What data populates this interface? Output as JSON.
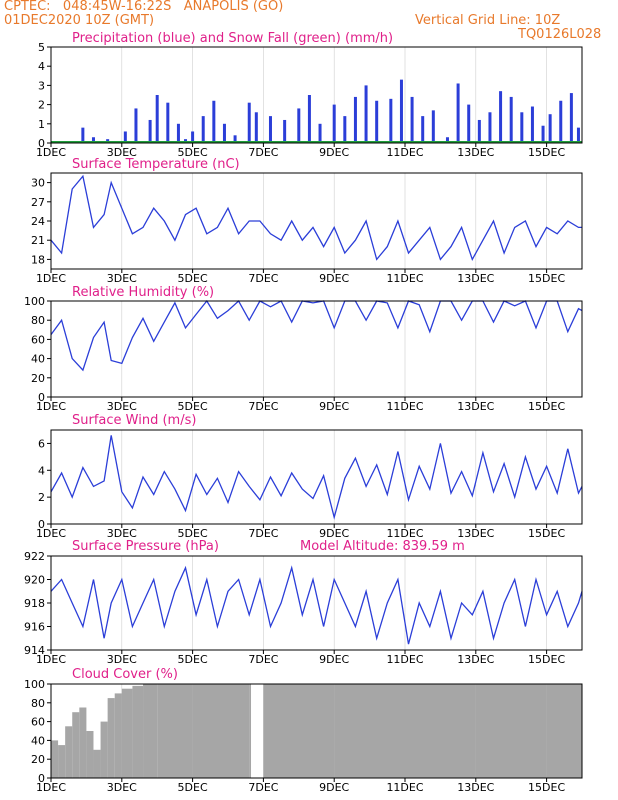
{
  "header": {
    "line1": "CPTEC:   048:45W-16:22S   ANAPOLIS (GO)",
    "line2_left": "01DEC2020 10Z (GMT)",
    "line2_right": "Vertical Grid Line: 10Z",
    "code": "TQ0126L028"
  },
  "colors": {
    "header": "#e8792b",
    "title": "#e0208a",
    "line": "#2b3ed8",
    "snow": "#1f9e3a",
    "cloud": "#a6a6a6"
  },
  "x_axis": {
    "days": [
      "1DEC",
      "3DEC",
      "5DEC",
      "7DEC",
      "9DEC",
      "11DEC",
      "13DEC",
      "15DEC"
    ]
  },
  "panels": {
    "precip": {
      "title": "Precipitation (blue) and Snow Fall (green) (mm/h)"
    },
    "temp": {
      "title": "Surface Temperature (nC)"
    },
    "rh": {
      "title": "Relative Humidity (%)"
    },
    "wind": {
      "title": "Surface Wind (m/s)"
    },
    "pres": {
      "title": "Surface Pressure (hPa)",
      "extra": "Model Altitude: 839.59 m"
    },
    "cloud": {
      "title": "Cloud Cover (%)"
    }
  },
  "chart_data": [
    {
      "type": "bar",
      "title": "Precipitation (blue) and Snow Fall (green) (mm/h)",
      "ylim": [
        0,
        5
      ],
      "yticks": [
        "0",
        "1",
        "2",
        "3",
        "4",
        "5"
      ],
      "series": [
        {
          "name": "Precipitation",
          "x_days": [
            1.3,
            1.9,
            2.2,
            2.6,
            3.1,
            3.4,
            3.8,
            4.0,
            4.3,
            4.6,
            4.8,
            5.0,
            5.3,
            5.6,
            5.9,
            6.2,
            6.6,
            6.8,
            7.2,
            7.6,
            8.0,
            8.3,
            8.6,
            9.0,
            9.3,
            9.6,
            9.9,
            10.2,
            10.6,
            10.9,
            11.2,
            11.5,
            11.8,
            12.2,
            12.5,
            12.8,
            13.1,
            13.4,
            13.7,
            14.0,
            14.3,
            14.6,
            14.9,
            15.1,
            15.4,
            15.7,
            15.9
          ],
          "values": [
            0.1,
            0.8,
            0.3,
            0.2,
            0.6,
            1.8,
            1.2,
            2.5,
            2.1,
            1.0,
            0.2,
            0.6,
            1.4,
            2.2,
            1.0,
            0.4,
            2.1,
            1.6,
            1.4,
            1.2,
            1.8,
            2.5,
            1.0,
            2.0,
            1.4,
            2.4,
            3.0,
            2.2,
            2.3,
            3.3,
            2.4,
            1.4,
            1.7,
            0.3,
            3.1,
            2.0,
            1.2,
            1.6,
            2.7,
            2.4,
            1.6,
            1.9,
            0.9,
            1.5,
            2.2,
            2.6,
            0.8
          ]
        },
        {
          "name": "Snow Fall",
          "x_days": [
            1.0,
            16.0
          ],
          "values": [
            0,
            0
          ]
        }
      ]
    },
    {
      "type": "line",
      "title": "Surface Temperature (nC)",
      "ylim": [
        16.5,
        31.5
      ],
      "yticks": [
        "18",
        "21",
        "24",
        "27",
        "30"
      ],
      "x_days": [
        1.0,
        1.3,
        1.6,
        1.9,
        2.2,
        2.5,
        2.7,
        3.0,
        3.3,
        3.6,
        3.9,
        4.2,
        4.5,
        4.8,
        5.1,
        5.4,
        5.7,
        6.0,
        6.3,
        6.6,
        6.9,
        7.2,
        7.5,
        7.8,
        8.1,
        8.4,
        8.7,
        9.0,
        9.3,
        9.6,
        9.9,
        10.2,
        10.5,
        10.8,
        11.1,
        11.4,
        11.7,
        12.0,
        12.3,
        12.6,
        12.9,
        13.2,
        13.5,
        13.8,
        14.1,
        14.4,
        14.7,
        15.0,
        15.3,
        15.6,
        15.9,
        16.0
      ],
      "values": [
        21,
        19,
        29,
        31,
        23,
        25,
        30,
        26,
        22,
        23,
        26,
        24,
        21,
        25,
        26,
        22,
        23,
        26,
        22,
        24,
        24,
        22,
        21,
        24,
        21,
        23,
        20,
        23,
        19,
        21,
        24,
        18,
        20,
        24,
        19,
        21,
        23,
        18,
        20,
        23,
        18,
        21,
        24,
        19,
        23,
        24,
        20,
        23,
        22,
        24,
        23,
        23
      ]
    },
    {
      "type": "line",
      "title": "Relative Humidity (%)",
      "ylim": [
        0,
        100
      ],
      "yticks": [
        "0",
        "20",
        "40",
        "60",
        "80",
        "100"
      ],
      "x_days": [
        1.0,
        1.3,
        1.6,
        1.9,
        2.2,
        2.5,
        2.7,
        3.0,
        3.3,
        3.6,
        3.9,
        4.2,
        4.5,
        4.8,
        5.1,
        5.4,
        5.7,
        6.0,
        6.3,
        6.6,
        6.9,
        7.2,
        7.5,
        7.8,
        8.1,
        8.4,
        8.7,
        9.0,
        9.3,
        9.6,
        9.9,
        10.2,
        10.5,
        10.8,
        11.1,
        11.4,
        11.7,
        12.0,
        12.3,
        12.6,
        12.9,
        13.2,
        13.5,
        13.8,
        14.1,
        14.4,
        14.7,
        15.0,
        15.3,
        15.6,
        15.9,
        16.0
      ],
      "values": [
        65,
        80,
        40,
        28,
        62,
        78,
        38,
        35,
        62,
        82,
        58,
        78,
        98,
        72,
        86,
        100,
        82,
        90,
        100,
        80,
        100,
        94,
        100,
        78,
        100,
        98,
        100,
        72,
        100,
        100,
        80,
        100,
        98,
        72,
        100,
        96,
        68,
        100,
        100,
        80,
        100,
        100,
        78,
        100,
        95,
        100,
        72,
        100,
        100,
        68,
        92,
        90
      ]
    },
    {
      "type": "line",
      "title": "Surface Wind (m/s)",
      "ylim": [
        0,
        7
      ],
      "yticks": [
        "0",
        "2",
        "4",
        "6"
      ],
      "x_days": [
        1.0,
        1.3,
        1.6,
        1.9,
        2.2,
        2.5,
        2.7,
        3.0,
        3.3,
        3.6,
        3.9,
        4.2,
        4.5,
        4.8,
        5.1,
        5.4,
        5.7,
        6.0,
        6.3,
        6.6,
        6.9,
        7.2,
        7.5,
        7.8,
        8.1,
        8.4,
        8.7,
        9.0,
        9.3,
        9.6,
        9.9,
        10.2,
        10.5,
        10.8,
        11.1,
        11.4,
        11.7,
        12.0,
        12.3,
        12.6,
        12.9,
        13.2,
        13.5,
        13.8,
        14.1,
        14.4,
        14.7,
        15.0,
        15.3,
        15.6,
        15.9,
        16.0
      ],
      "values": [
        2.4,
        3.8,
        2.0,
        4.2,
        2.8,
        3.2,
        6.6,
        2.4,
        1.2,
        3.5,
        2.2,
        3.9,
        2.6,
        1.0,
        3.7,
        2.2,
        3.4,
        1.6,
        3.9,
        2.8,
        1.8,
        3.5,
        2.1,
        3.8,
        2.6,
        1.9,
        3.6,
        0.5,
        3.4,
        4.9,
        2.8,
        4.4,
        2.2,
        5.4,
        1.8,
        4.3,
        2.6,
        6.0,
        2.3,
        3.9,
        2.1,
        5.3,
        2.4,
        4.5,
        2.0,
        5.0,
        2.6,
        4.3,
        2.3,
        5.6,
        2.3,
        2.8
      ]
    },
    {
      "type": "line",
      "title": "Surface Pressure (hPa)",
      "ylim": [
        914,
        922
      ],
      "yticks": [
        "914",
        "916",
        "918",
        "920",
        "922"
      ],
      "x_days": [
        1.0,
        1.3,
        1.6,
        1.9,
        2.2,
        2.5,
        2.7,
        3.0,
        3.3,
        3.6,
        3.9,
        4.2,
        4.5,
        4.8,
        5.1,
        5.4,
        5.7,
        6.0,
        6.3,
        6.6,
        6.9,
        7.2,
        7.5,
        7.8,
        8.1,
        8.4,
        8.7,
        9.0,
        9.3,
        9.6,
        9.9,
        10.2,
        10.5,
        10.8,
        11.1,
        11.4,
        11.7,
        12.0,
        12.3,
        12.6,
        12.9,
        13.2,
        13.5,
        13.8,
        14.1,
        14.4,
        14.7,
        15.0,
        15.3,
        15.6,
        15.9,
        16.0
      ],
      "values": [
        919,
        920,
        918,
        916,
        920,
        915,
        918,
        920,
        916,
        918,
        920,
        916,
        919,
        921,
        917,
        920,
        916,
        919,
        920,
        917,
        920,
        916,
        918,
        921,
        917,
        920,
        916,
        920,
        918,
        916,
        919,
        915,
        918,
        920,
        914.5,
        918,
        916,
        919,
        915,
        918,
        917,
        919,
        915,
        918,
        920,
        916,
        920,
        917,
        919,
        916,
        918,
        919
      ]
    },
    {
      "type": "bar",
      "title": "Cloud Cover (%)",
      "ylim": [
        0,
        100
      ],
      "yticks": [
        "0",
        "20",
        "40",
        "60",
        "80",
        "100"
      ],
      "x_days": [
        1.0,
        1.2,
        1.4,
        1.6,
        1.8,
        2.0,
        2.2,
        2.4,
        2.6,
        2.8,
        3.0,
        3.3,
        3.6,
        4.0,
        5.0,
        6.0,
        6.6,
        6.65,
        7.0,
        9.0,
        11.0,
        13.0,
        15.0,
        16.0
      ],
      "values": [
        40,
        35,
        55,
        70,
        75,
        50,
        30,
        60,
        85,
        90,
        95,
        98,
        100,
        100,
        100,
        100,
        100,
        0,
        100,
        100,
        100,
        100,
        100,
        100
      ]
    }
  ]
}
